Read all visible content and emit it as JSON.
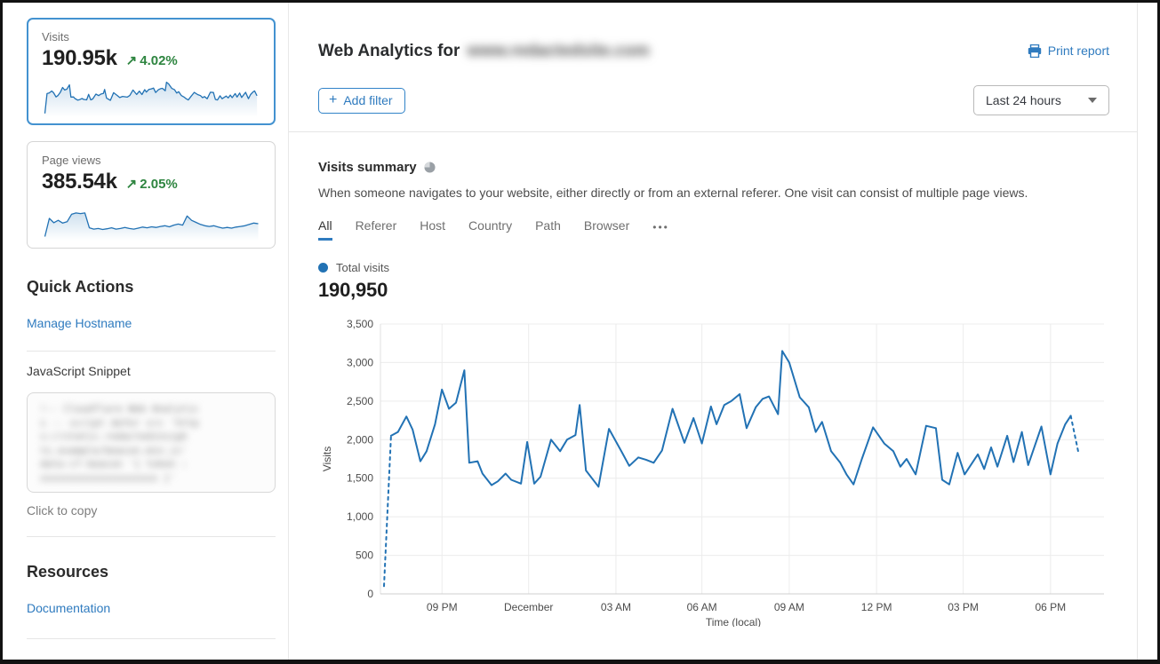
{
  "colors": {
    "accent_blue": "#2f7bbf",
    "chart_line": "#2272b4",
    "positive_green": "#2e8540",
    "selected_card_border": "#4392d0"
  },
  "sidebar": {
    "metric_cards": [
      {
        "label": "Visits",
        "value": "190.95k",
        "delta_arrow": "↗",
        "delta": "4.02%",
        "selected": true,
        "spark_source": "chart_data"
      },
      {
        "label": "Page views",
        "value": "385.54k",
        "delta_arrow": "↗",
        "delta": "2.05%",
        "selected": false,
        "spark_values": [
          4,
          58,
          45,
          52,
          44,
          48,
          70,
          74,
          72,
          74,
          30,
          26,
          28,
          25,
          27,
          30,
          26,
          28,
          31,
          28,
          26,
          29,
          32,
          30,
          33,
          31,
          34,
          36,
          33,
          38,
          41,
          38,
          65,
          52,
          46,
          40,
          36,
          34,
          36,
          32,
          29,
          31,
          29,
          32,
          34,
          36,
          40,
          44,
          42
        ]
      }
    ],
    "quick_actions": {
      "title": "Quick Actions",
      "links": [
        {
          "label": "Manage Hostname"
        }
      ],
      "snippet_label": "JavaScript Snippet",
      "snippet_hint": "Click to copy",
      "snippet_redacted": true,
      "snippet_placeholder_lines": [
        "!-- Cloudflare Web Analytic",
        "s -- script defer src 'http",
        "s://static.redactedinsigh",
        "ts.example/beacon.min.js'",
        "data-cf-beacon '{ token :",
        "xxxxxxxxxxxxxxxxxxxx }'"
      ]
    },
    "resources": {
      "title": "Resources",
      "links": [
        {
          "label": "Documentation"
        }
      ]
    }
  },
  "header": {
    "title_prefix": "Web Analytics for",
    "domain_redacted": true,
    "domain_placeholder": "www.redactedsite.com",
    "print_label": "Print report",
    "add_filter_icon": "+",
    "add_filter_label": "Add filter",
    "time_range_value": "Last 24 hours"
  },
  "summary": {
    "title": "Visits summary",
    "description": "When someone navigates to your website, either directly or from an external referer. One visit can consist of multiple page views.",
    "tabs": [
      "All",
      "Referer",
      "Host",
      "Country",
      "Path",
      "Browser"
    ],
    "active_tab": "All",
    "more_tabs_icon": "•••",
    "total_visits": "190,950"
  },
  "chart_data": {
    "type": "line",
    "xlabel": "Time (local)",
    "ylabel": "Visits",
    "ylim": [
      0,
      3500
    ],
    "y_ticks": [
      {
        "v": 0,
        "label": "0"
      },
      {
        "v": 500,
        "label": "500"
      },
      {
        "v": 1000,
        "label": "1,000"
      },
      {
        "v": 1500,
        "label": "1,500"
      },
      {
        "v": 2000,
        "label": "2,000"
      },
      {
        "v": 2500,
        "label": "2,500"
      },
      {
        "v": 3000,
        "label": "3,000"
      },
      {
        "v": 3500,
        "label": "3,500"
      }
    ],
    "x_ticks": [
      {
        "f": 0.083,
        "label": "09 PM"
      },
      {
        "f": 0.207,
        "label": "December"
      },
      {
        "f": 0.332,
        "label": "03 AM"
      },
      {
        "f": 0.455,
        "label": "06 AM"
      },
      {
        "f": 0.58,
        "label": "09 AM"
      },
      {
        "f": 0.705,
        "label": "12 PM"
      },
      {
        "f": 0.829,
        "label": "03 PM"
      },
      {
        "f": 0.954,
        "label": "06 PM"
      }
    ],
    "grid": true,
    "legend_position": "top-left",
    "series": [
      {
        "name": "Total visits",
        "color": "#2272b4",
        "dashed_head_segments": 1,
        "dashed_tail_segments": 1,
        "points": [
          [
            0.0,
            100
          ],
          [
            0.01,
            2050
          ],
          [
            0.02,
            2100
          ],
          [
            0.032,
            2300
          ],
          [
            0.041,
            2130
          ],
          [
            0.052,
            1720
          ],
          [
            0.061,
            1850
          ],
          [
            0.073,
            2200
          ],
          [
            0.083,
            2650
          ],
          [
            0.093,
            2400
          ],
          [
            0.103,
            2480
          ],
          [
            0.115,
            2900
          ],
          [
            0.122,
            1700
          ],
          [
            0.134,
            1720
          ],
          [
            0.141,
            1560
          ],
          [
            0.154,
            1410
          ],
          [
            0.163,
            1460
          ],
          [
            0.174,
            1560
          ],
          [
            0.182,
            1480
          ],
          [
            0.196,
            1430
          ],
          [
            0.205,
            1970
          ],
          [
            0.215,
            1430
          ],
          [
            0.224,
            1520
          ],
          [
            0.239,
            2000
          ],
          [
            0.252,
            1850
          ],
          [
            0.262,
            2000
          ],
          [
            0.274,
            2060
          ],
          [
            0.28,
            2450
          ],
          [
            0.289,
            1600
          ],
          [
            0.307,
            1390
          ],
          [
            0.322,
            2140
          ],
          [
            0.341,
            1830
          ],
          [
            0.351,
            1660
          ],
          [
            0.364,
            1770
          ],
          [
            0.375,
            1740
          ],
          [
            0.386,
            1700
          ],
          [
            0.398,
            1860
          ],
          [
            0.413,
            2400
          ],
          [
            0.43,
            1960
          ],
          [
            0.443,
            2280
          ],
          [
            0.455,
            1950
          ],
          [
            0.468,
            2430
          ],
          [
            0.476,
            2200
          ],
          [
            0.487,
            2450
          ],
          [
            0.497,
            2500
          ],
          [
            0.509,
            2590
          ],
          [
            0.519,
            2150
          ],
          [
            0.532,
            2420
          ],
          [
            0.542,
            2530
          ],
          [
            0.551,
            2560
          ],
          [
            0.564,
            2330
          ],
          [
            0.57,
            3150
          ],
          [
            0.58,
            3000
          ],
          [
            0.595,
            2550
          ],
          [
            0.608,
            2420
          ],
          [
            0.618,
            2100
          ],
          [
            0.627,
            2230
          ],
          [
            0.64,
            1850
          ],
          [
            0.653,
            1700
          ],
          [
            0.662,
            1550
          ],
          [
            0.672,
            1420
          ],
          [
            0.684,
            1750
          ],
          [
            0.7,
            2160
          ],
          [
            0.716,
            1950
          ],
          [
            0.729,
            1850
          ],
          [
            0.739,
            1650
          ],
          [
            0.748,
            1750
          ],
          [
            0.761,
            1550
          ],
          [
            0.776,
            2180
          ],
          [
            0.79,
            2150
          ],
          [
            0.799,
            1480
          ],
          [
            0.809,
            1420
          ],
          [
            0.821,
            1830
          ],
          [
            0.831,
            1550
          ],
          [
            0.85,
            1810
          ],
          [
            0.859,
            1620
          ],
          [
            0.869,
            1900
          ],
          [
            0.878,
            1650
          ],
          [
            0.892,
            2050
          ],
          [
            0.901,
            1710
          ],
          [
            0.913,
            2100
          ],
          [
            0.922,
            1670
          ],
          [
            0.941,
            2170
          ],
          [
            0.954,
            1550
          ],
          [
            0.964,
            1950
          ],
          [
            0.975,
            2200
          ],
          [
            0.983,
            2310
          ],
          [
            0.994,
            1830
          ]
        ]
      }
    ]
  }
}
